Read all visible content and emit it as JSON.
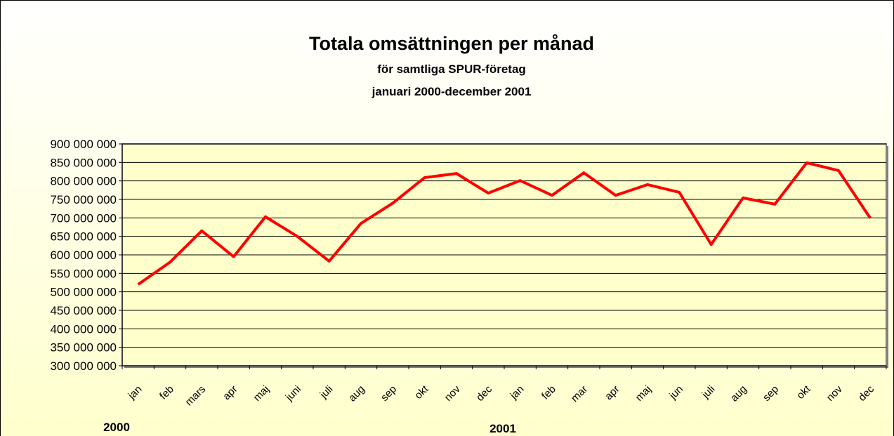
{
  "chart_data": {
    "type": "line",
    "title": "Totala omsättningen per månad",
    "subtitle": [
      "för samtliga SPUR-företag",
      "januari 2000-december 2001"
    ],
    "annotations": [
      "2000",
      "2001"
    ],
    "categories": [
      "jan",
      "feb",
      "mars",
      "apr",
      "maj",
      "juni",
      "juli",
      "aug",
      "sep",
      "okt",
      "nov",
      "dec",
      "jan",
      "feb",
      "mar",
      "apr",
      "maj",
      "jun",
      "juli",
      "aug",
      "sep",
      "okt",
      "nov",
      "dec"
    ],
    "series": [
      {
        "color": "#ff0000",
        "values": [
          520000000,
          580000000,
          665000000,
          595000000,
          703000000,
          650000000,
          583000000,
          685000000,
          740000000,
          809000000,
          820000000,
          767000000,
          801000000,
          761000000,
          822000000,
          761000000,
          790000000,
          769000000,
          628000000,
          754000000,
          737000000,
          849000000,
          828000000,
          699000000
        ]
      }
    ],
    "ylim": [
      300000000,
      900000000
    ],
    "yticks": [
      {
        "value": 300000000,
        "label": "300 000 000"
      },
      {
        "value": 350000000,
        "label": "350 000 000"
      },
      {
        "value": 400000000,
        "label": "400 000 000"
      },
      {
        "value": 450000000,
        "label": "450 000 000"
      },
      {
        "value": 500000000,
        "label": "500 000 000"
      },
      {
        "value": 550000000,
        "label": "550 000 000"
      },
      {
        "value": 600000000,
        "label": "600 000 000"
      },
      {
        "value": 650000000,
        "label": "650 000 000"
      },
      {
        "value": 700000000,
        "label": "700 000 000"
      },
      {
        "value": 750000000,
        "label": "750 000 000"
      },
      {
        "value": 800000000,
        "label": "800 000 000"
      },
      {
        "value": 850000000,
        "label": "850 000 000"
      },
      {
        "value": 900000000,
        "label": "900 000 000"
      }
    ],
    "grid": true
  }
}
